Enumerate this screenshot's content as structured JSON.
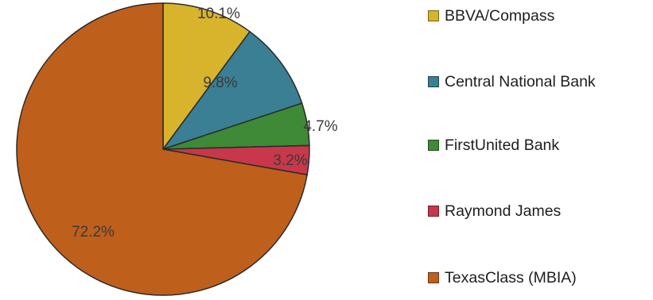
{
  "chart_data": {
    "type": "pie",
    "series": [
      {
        "name": "BBVA/Compass",
        "value": 10.1,
        "label": "10.1%",
        "color": "#d8b42c"
      },
      {
        "name": "Central National Bank",
        "value": 9.8,
        "label": "9.8%",
        "color": "#3a7f93"
      },
      {
        "name": "FirstUnited Bank",
        "value": 4.7,
        "label": "4.7%",
        "color": "#3e8a37"
      },
      {
        "name": "Raymond James",
        "value": 3.2,
        "label": "3.2%",
        "color": "#c8384a"
      },
      {
        "name": "TexasClass (MBIA)",
        "value": 72.2,
        "label": "72.2%",
        "color": "#bf5f1c"
      }
    ],
    "start_angle_deg": 0,
    "direction": "clockwise",
    "legend_position": "right"
  }
}
